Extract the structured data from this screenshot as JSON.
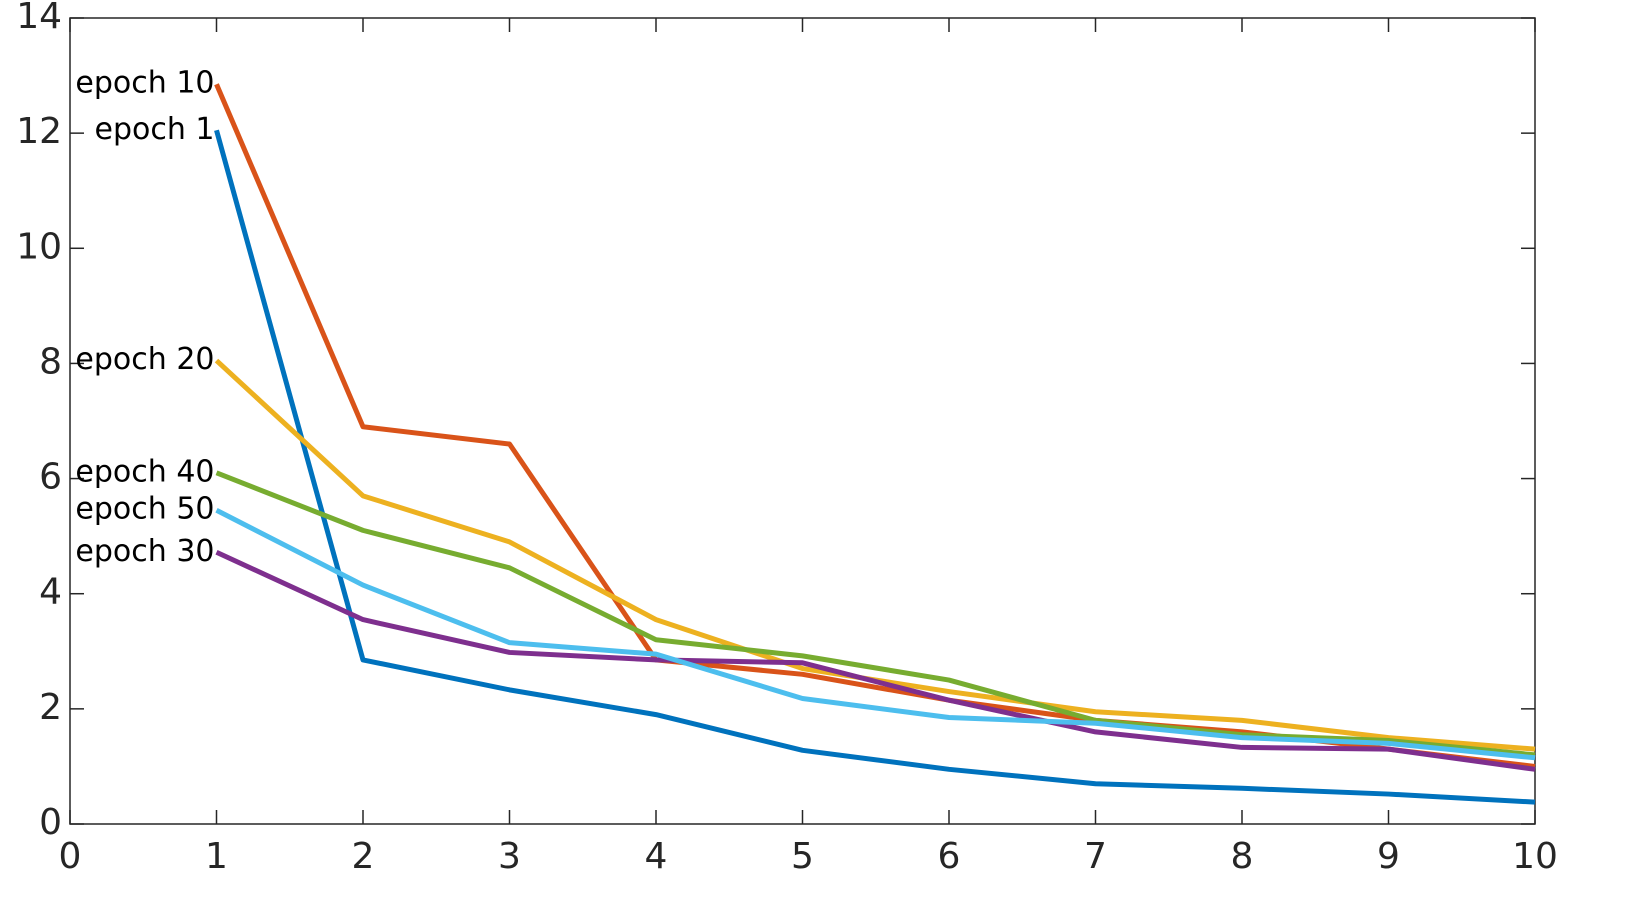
{
  "chart_data": {
    "type": "line",
    "x": [
      1,
      2,
      3,
      4,
      5,
      6,
      7,
      8,
      9,
      10
    ],
    "series": [
      {
        "name": "epoch 1",
        "color": "#0072BD",
        "values": [
          12.05,
          2.85,
          2.33,
          1.9,
          1.28,
          0.95,
          0.7,
          0.62,
          0.52,
          0.38
        ]
      },
      {
        "name": "epoch 10",
        "color": "#D95319",
        "values": [
          12.85,
          6.9,
          6.6,
          2.85,
          2.6,
          2.15,
          1.8,
          1.6,
          1.3,
          1.0
        ]
      },
      {
        "name": "epoch 20",
        "color": "#EDB120",
        "values": [
          8.05,
          5.7,
          4.9,
          3.55,
          2.7,
          2.3,
          1.95,
          1.8,
          1.5,
          1.3
        ]
      },
      {
        "name": "epoch 30",
        "color": "#7E2F8E",
        "values": [
          4.72,
          3.55,
          2.98,
          2.85,
          2.8,
          2.15,
          1.6,
          1.33,
          1.3,
          0.95
        ]
      },
      {
        "name": "epoch 40",
        "color": "#77AC30",
        "values": [
          6.1,
          5.1,
          4.45,
          3.2,
          2.92,
          2.5,
          1.8,
          1.55,
          1.45,
          1.2
        ]
      },
      {
        "name": "epoch 50",
        "color": "#4DBEEE",
        "values": [
          5.45,
          4.15,
          3.15,
          2.95,
          2.18,
          1.85,
          1.75,
          1.5,
          1.4,
          1.15
        ]
      }
    ],
    "xlim": [
      0,
      10
    ],
    "xticks": [
      0,
      1,
      2,
      3,
      4,
      5,
      6,
      7,
      8,
      9,
      10
    ],
    "ylim": [
      0,
      14
    ],
    "yticks": [
      0,
      2,
      4,
      6,
      8,
      10,
      12,
      14
    ]
  }
}
